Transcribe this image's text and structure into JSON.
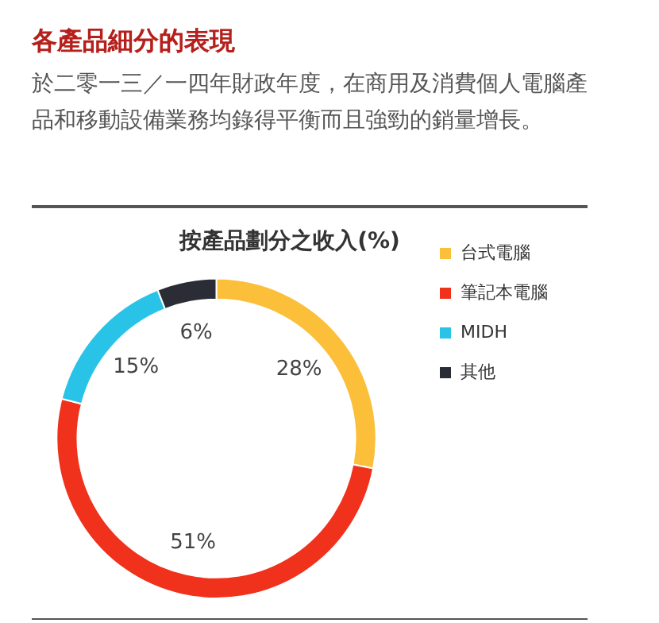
{
  "chart_data": {
    "type": "donut",
    "title": "各產品細分的表現",
    "subtitle": "於二零一三／一四年財政年度，在商用及消費個人電腦產品和移動設備業務均錄得平衡而且強勁的銷量增長。",
    "legend_title": "按產品劃分之收入(%)",
    "categories": [
      "台式電腦",
      "筆記本電腦",
      "MIDH",
      "其他"
    ],
    "values": [
      28,
      51,
      15,
      6
    ],
    "colors": [
      "#fbbf3a",
      "#f0311c",
      "#2ac3e8",
      "#2a2d35"
    ],
    "value_labels": [
      "28%",
      "51%",
      "15%",
      "6%"
    ],
    "legend": "right"
  }
}
